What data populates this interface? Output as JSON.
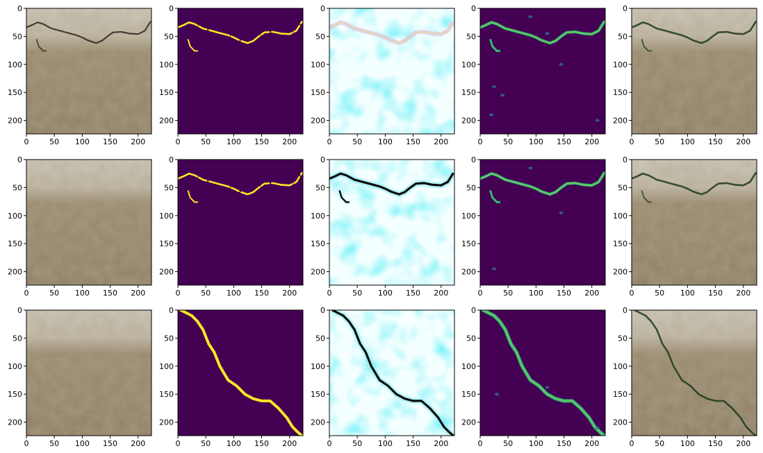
{
  "figure": {
    "rows": 3,
    "cols": 5,
    "axis_range": [
      0,
      224
    ],
    "x_ticks": [
      "0",
      "50",
      "100",
      "150",
      "200"
    ],
    "y_ticks": [
      "0",
      "50",
      "100",
      "150",
      "200"
    ],
    "panel_kinds": [
      "photo",
      "mask",
      "saliency",
      "prediction",
      "overlay"
    ],
    "colors": {
      "mask_background": "#440154",
      "mask_crack": "#fde725",
      "prediction_crack": "#3fbf7f",
      "saliency_background": "#f4ffff",
      "saliency_blob": "#2ee6f2",
      "photo_base": "#9a8a6e",
      "photo_top": "#c9c3b6"
    },
    "rows_data": [
      {
        "crack": [
          [
            0,
            34
          ],
          [
            10,
            30
          ],
          [
            20,
            25
          ],
          [
            30,
            28
          ],
          [
            45,
            36
          ],
          [
            60,
            40
          ],
          [
            75,
            44
          ],
          [
            90,
            48
          ],
          [
            100,
            52
          ],
          [
            110,
            57
          ],
          [
            125,
            62
          ],
          [
            135,
            58
          ],
          [
            145,
            50
          ],
          [
            155,
            43
          ],
          [
            170,
            42
          ],
          [
            185,
            45
          ],
          [
            200,
            46
          ],
          [
            212,
            40
          ],
          [
            222,
            24
          ]
        ],
        "branch": [
          [
            18,
            55
          ],
          [
            22,
            68
          ],
          [
            30,
            76
          ],
          [
            36,
            76
          ]
        ],
        "crack_visible_in": [
          "photo",
          "mask",
          "saliency",
          "prediction",
          "overlay"
        ]
      },
      {
        "crack": [
          [
            0,
            34
          ],
          [
            10,
            30
          ],
          [
            20,
            25
          ],
          [
            30,
            28
          ],
          [
            45,
            36
          ],
          [
            60,
            40
          ],
          [
            75,
            44
          ],
          [
            90,
            48
          ],
          [
            100,
            52
          ],
          [
            110,
            57
          ],
          [
            125,
            62
          ],
          [
            135,
            58
          ],
          [
            145,
            50
          ],
          [
            155,
            43
          ],
          [
            170,
            42
          ],
          [
            185,
            45
          ],
          [
            200,
            46
          ],
          [
            212,
            40
          ],
          [
            222,
            24
          ]
        ],
        "branch": [
          [
            18,
            55
          ],
          [
            22,
            68
          ],
          [
            30,
            76
          ],
          [
            36,
            76
          ]
        ],
        "crack_visible_in": [
          "mask",
          "saliency",
          "prediction",
          "overlay"
        ]
      },
      {
        "crack": [
          [
            5,
            0
          ],
          [
            15,
            5
          ],
          [
            25,
            10
          ],
          [
            35,
            20
          ],
          [
            45,
            35
          ],
          [
            55,
            60
          ],
          [
            65,
            75
          ],
          [
            75,
            100
          ],
          [
            90,
            125
          ],
          [
            105,
            135
          ],
          [
            120,
            150
          ],
          [
            135,
            158
          ],
          [
            150,
            162
          ],
          [
            165,
            162
          ],
          [
            180,
            175
          ],
          [
            195,
            192
          ],
          [
            205,
            208
          ],
          [
            215,
            218
          ],
          [
            222,
            224
          ]
        ],
        "branch": [],
        "crack_visible_in": [
          "mask",
          "saliency",
          "prediction",
          "overlay"
        ]
      }
    ]
  }
}
